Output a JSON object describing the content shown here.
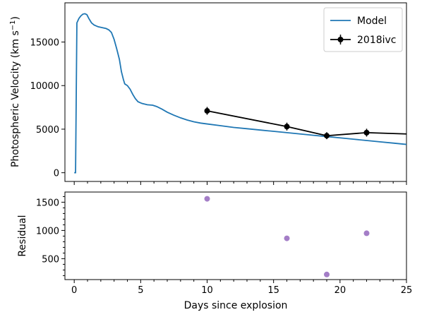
{
  "chart_data": [
    {
      "type": "line",
      "ylabel": "Photospheric Velocity (km s",
      "ylabel_sup": "−1",
      "ylabel_close": ")",
      "xlim": [
        -0.7,
        25
      ],
      "ylim": [
        -1000,
        19500
      ],
      "x_ticks": [
        0,
        5,
        10,
        15,
        20,
        25
      ],
      "y_ticks": [
        0,
        5000,
        10000,
        15000
      ],
      "y_tick_labels": [
        "0",
        "5000",
        "10000",
        "15000"
      ],
      "legend": "top-right",
      "series": [
        {
          "name": "Model",
          "color": "#1f77b4",
          "x": [
            0,
            0.1,
            0.2,
            0.35,
            0.5,
            0.65,
            0.8,
            0.95,
            1.1,
            1.3,
            1.5,
            1.8,
            2.1,
            2.4,
            2.6,
            2.8,
            3.0,
            3.2,
            3.4,
            3.55,
            3.7,
            3.8,
            4.0,
            4.2,
            4.4,
            4.6,
            4.8,
            5.1,
            5.5,
            5.9,
            6.2,
            6.6,
            7.0,
            7.5,
            8.0,
            8.5,
            9.0,
            9.5,
            10,
            11,
            12,
            13,
            14,
            15,
            16,
            17,
            18,
            19,
            20,
            21,
            22,
            23,
            24,
            25
          ],
          "y": [
            0,
            0,
            17200,
            17700,
            18000,
            18200,
            18250,
            18150,
            17700,
            17200,
            16950,
            16750,
            16650,
            16550,
            16400,
            16100,
            15300,
            14200,
            13000,
            11600,
            10700,
            10200,
            10000,
            9600,
            9000,
            8500,
            8150,
            7950,
            7800,
            7750,
            7600,
            7300,
            6950,
            6600,
            6300,
            6050,
            5850,
            5700,
            5600,
            5400,
            5200,
            5050,
            4900,
            4750,
            4600,
            4450,
            4300,
            4150,
            4000,
            3850,
            3700,
            3550,
            3400,
            3250
          ]
        },
        {
          "name": "2018ivc",
          "color": "#000000",
          "x": [
            10,
            16,
            19,
            22,
            25
          ],
          "y": [
            7100,
            5300,
            4250,
            4600,
            4450
          ],
          "yerr": [
            450,
            450,
            400,
            450,
            null
          ]
        }
      ]
    },
    {
      "type": "scatter",
      "xlabel": "Days since explosion",
      "ylabel": "Residual",
      "xlim": [
        -0.7,
        25
      ],
      "ylim": [
        130,
        1680
      ],
      "x_ticks": [
        0,
        5,
        10,
        15,
        20,
        25
      ],
      "x_tick_labels": [
        "0",
        "5",
        "10",
        "15",
        "20",
        "25"
      ],
      "y_ticks": [
        500,
        1000,
        1500
      ],
      "y_tick_labels": [
        "500",
        "1000",
        "1500"
      ],
      "series": [
        {
          "color": "#9467bd",
          "x": [
            10,
            16,
            19,
            22
          ],
          "y": [
            1560,
            860,
            220,
            950
          ]
        }
      ]
    }
  ]
}
